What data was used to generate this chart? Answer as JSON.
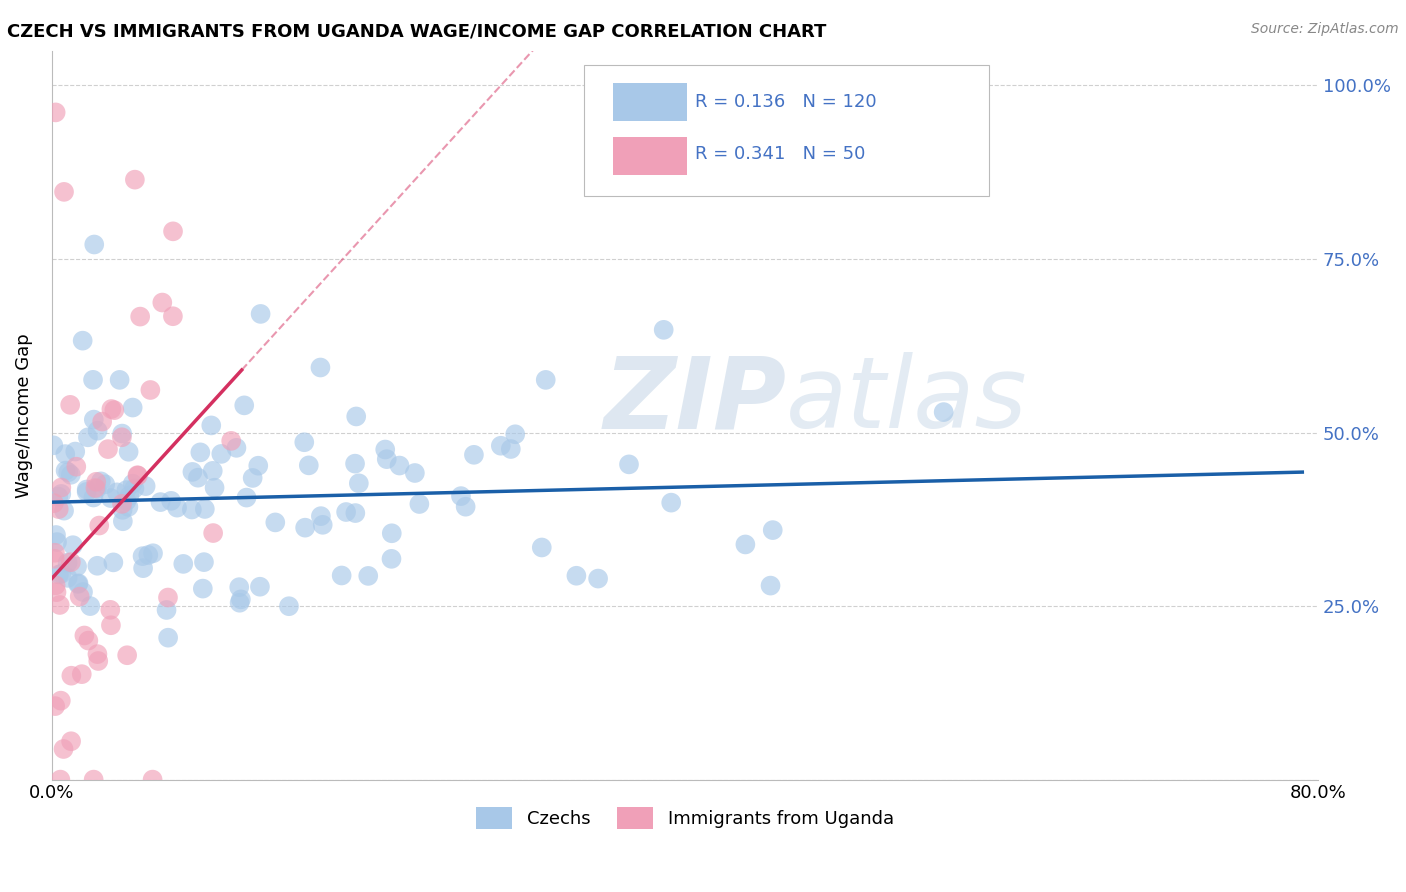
{
  "title": "CZECH VS IMMIGRANTS FROM UGANDA WAGE/INCOME GAP CORRELATION CHART",
  "source": "Source: ZipAtlas.com",
  "ylabel": "Wage/Income Gap",
  "legend_labels": [
    "Czechs",
    "Immigrants from Uganda"
  ],
  "czechs_color": "#a8c8e8",
  "uganda_color": "#f0a0b8",
  "czechs_line_color": "#1a5fa8",
  "uganda_line_color": "#d43060",
  "czechs_R": 0.136,
  "czechs_N": 120,
  "uganda_R": 0.341,
  "uganda_N": 50,
  "watermark_zip": "ZIP",
  "watermark_atlas": "atlas",
  "xlim": [
    0.0,
    0.8
  ],
  "ylim": [
    0.0,
    1.05
  ],
  "background_color": "#ffffff",
  "grid_color": "#d0d0d0",
  "tick_color": "#4472c4",
  "ytick_vals": [
    0.0,
    0.25,
    0.5,
    0.75,
    1.0
  ],
  "ytick_labels": [
    "",
    "25.0%",
    "50.0%",
    "75.0%",
    "100.0%"
  ]
}
